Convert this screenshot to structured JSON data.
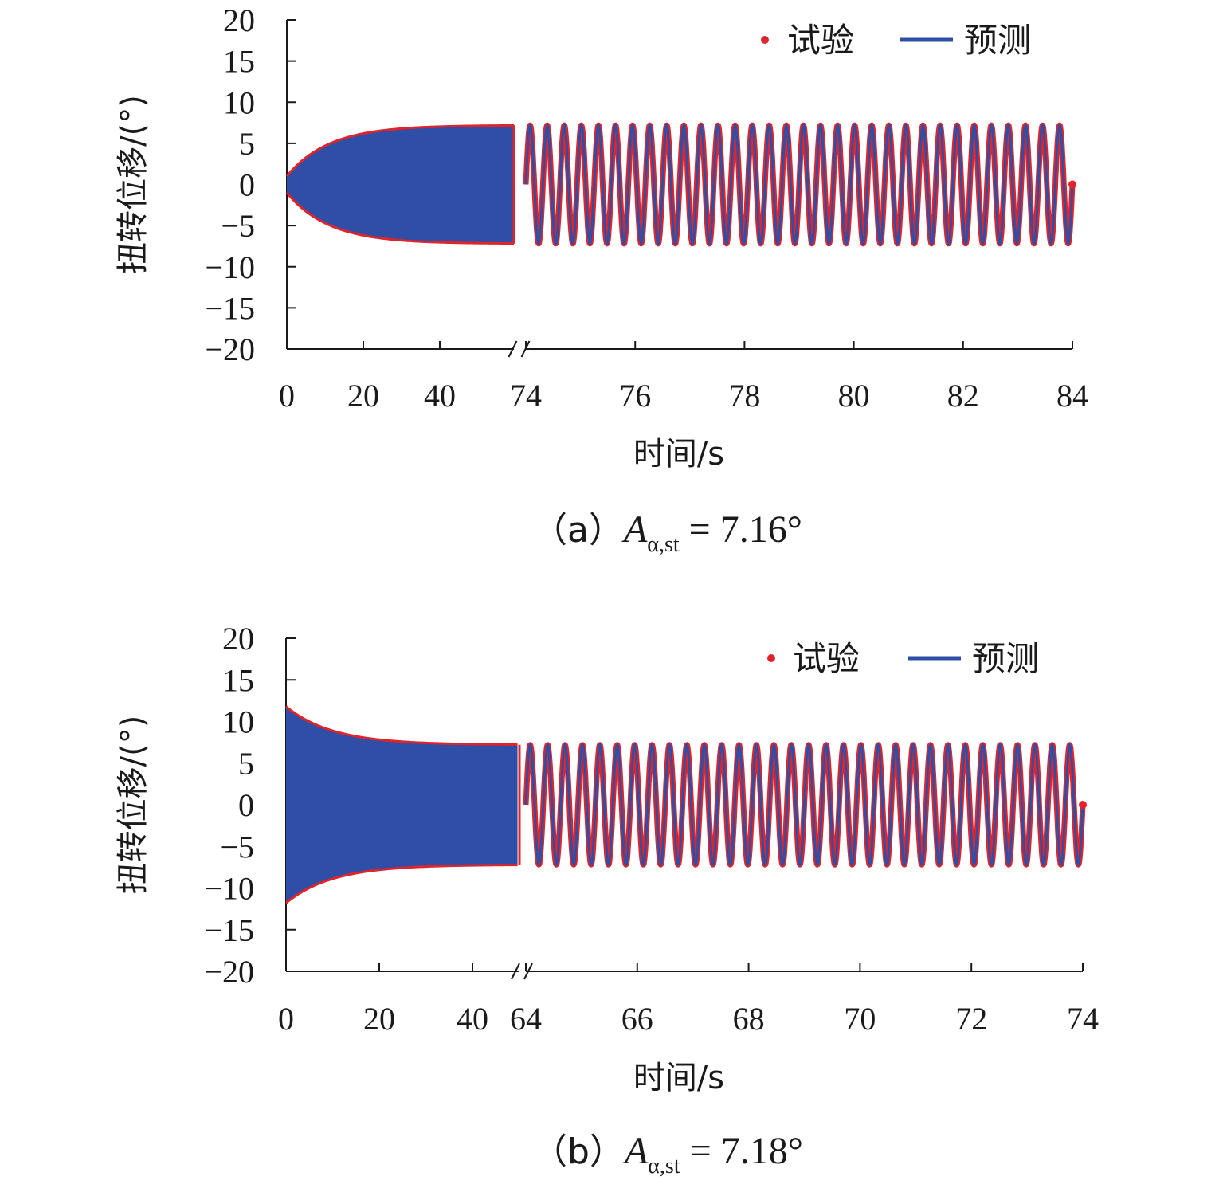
{
  "colors": {
    "experiment": "#e0242b",
    "prediction": "#2f4ea6",
    "axis": "#1a1a1a"
  },
  "chart_data": [
    {
      "type": "line",
      "panel_label": "（a）",
      "caption_symbol": "A",
      "caption_subscript": "α,st",
      "caption_value": " = 7.16°",
      "ylabel": "扭转位移/(°)",
      "xlabel": "时间/s",
      "ylim": [
        -20,
        20
      ],
      "yticks": [
        20,
        15,
        10,
        5,
        0,
        -5,
        -10,
        -15,
        -20
      ],
      "ytick_labels": [
        "20",
        "15",
        "10",
        "5",
        "0",
        "−5",
        "−10",
        "−15",
        "−20"
      ],
      "legend": [
        "试验",
        "预测"
      ],
      "legend_position": "top-right",
      "axis_break": true,
      "x_segments": [
        {
          "range": [
            0,
            60
          ],
          "ticks": [
            0,
            20,
            40
          ],
          "tick_labels": [
            "0",
            "20",
            "40"
          ],
          "envelope": {
            "start": 1.0,
            "final": 7.2,
            "growth": true,
            "tau": 11
          }
        },
        {
          "range": [
            74,
            84
          ],
          "ticks": [
            74,
            76,
            78,
            80,
            82,
            84
          ],
          "tick_labels": [
            "74",
            "76",
            "78",
            "80",
            "82",
            "84"
          ],
          "cycles": 32,
          "amplitude": 7.2,
          "phase_start": 0.0
        }
      ],
      "series": [
        {
          "name": "试验",
          "style": "markers"
        },
        {
          "name": "预测",
          "style": "line"
        }
      ]
    },
    {
      "type": "line",
      "panel_label": "（b）",
      "caption_symbol": "A",
      "caption_subscript": "α,st",
      "caption_value": " = 7.18°",
      "ylabel": "扭转位移/(°)",
      "xlabel": "时间/s",
      "ylim": [
        -20,
        20
      ],
      "yticks": [
        20,
        15,
        10,
        5,
        0,
        -5,
        -10,
        -15,
        -20
      ],
      "ytick_labels": [
        "20",
        "15",
        "10",
        "5",
        "0",
        "−5",
        "−10",
        "−15",
        "−20"
      ],
      "legend": [
        "试验",
        "预测"
      ],
      "legend_position": "top-right",
      "axis_break": true,
      "x_segments": [
        {
          "range": [
            0,
            50
          ],
          "ticks": [
            0,
            20,
            40
          ],
          "tick_labels": [
            "0",
            "20",
            "40"
          ],
          "envelope": {
            "start": 11.8,
            "final": 7.2,
            "growth": false,
            "tau": 10
          }
        },
        {
          "range": [
            64,
            74
          ],
          "ticks": [
            64,
            66,
            68,
            70,
            72,
            74
          ],
          "tick_labels": [
            "64",
            "66",
            "68",
            "70",
            "72",
            "74"
          ],
          "cycles": 32,
          "amplitude": 7.2,
          "phase_start": 0.0
        }
      ],
      "series": [
        {
          "name": "试验",
          "style": "markers"
        },
        {
          "name": "预测",
          "style": "line"
        }
      ]
    }
  ]
}
